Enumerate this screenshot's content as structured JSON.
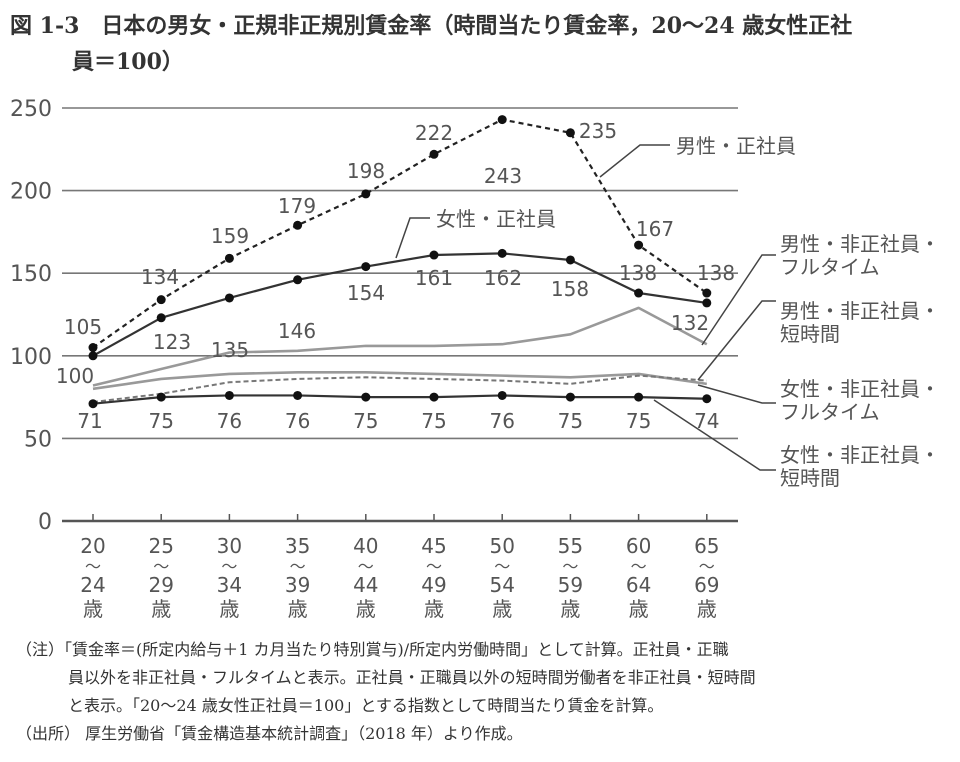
{
  "title": {
    "line1": "図 1-3　日本の男女・正規非正規別賃金率（時間当たり賃金率，20〜24 歳女性正社",
    "line2": "員＝100）"
  },
  "notes": {
    "note_label": "（注）",
    "note_line1": "「賃金率＝(所定内給与＋1 カ月当たり特別賞与)/所定内労働時間」として計算。正社員・正職",
    "note_line2": "員以外を非正社員・フルタイムと表示。正社員・正職員以外の短時間労働者を非正社員・短時間",
    "note_line3": "と表示。「20〜24 歳女性正社員＝100」とする指数として時間当たり賃金を計算。",
    "source_label": "（出所）",
    "source_text": "厚生労働省「賃金構造基本統計調査」（2018 年）より作成。"
  },
  "chart_data": {
    "type": "line",
    "title": "日本の男女・正規非正規別賃金率（時間当たり賃金率，20〜24 歳女性正社員＝100）",
    "xlabel": "",
    "ylabel": "",
    "ylim": [
      0,
      250
    ],
    "yticks": [
      0,
      50,
      100,
      150,
      200,
      250
    ],
    "grid": true,
    "legend_position": "right (leader-line labels)",
    "categories": [
      "20〜24歳",
      "25〜29歳",
      "30〜34歳",
      "35〜39歳",
      "40〜44歳",
      "45〜49歳",
      "50〜54歳",
      "55〜59歳",
      "60〜64歳",
      "65〜69歳"
    ],
    "x_tick_labels": [
      [
        "20",
        "〜",
        "24",
        "歳"
      ],
      [
        "25",
        "〜",
        "29",
        "歳"
      ],
      [
        "30",
        "〜",
        "34",
        "歳"
      ],
      [
        "35",
        "〜",
        "39",
        "歳"
      ],
      [
        "40",
        "〜",
        "44",
        "歳"
      ],
      [
        "45",
        "〜",
        "49",
        "歳"
      ],
      [
        "50",
        "〜",
        "54",
        "歳"
      ],
      [
        "55",
        "〜",
        "59",
        "歳"
      ],
      [
        "60",
        "〜",
        "64",
        "歳"
      ],
      [
        "65",
        "〜",
        "69",
        "歳"
      ]
    ],
    "series": [
      {
        "name": "男性・正社員",
        "values": [
          105,
          134,
          159,
          179,
          198,
          222,
          243,
          235,
          167,
          138
        ],
        "style": "dashed-black-markers",
        "labeled": true
      },
      {
        "name": "女性・正社員",
        "values": [
          100,
          123,
          135,
          146,
          154,
          161,
          162,
          158,
          138,
          132
        ],
        "style": "solid-black-markers",
        "labeled": true
      },
      {
        "name": "男性・非正社員・フルタイム",
        "values": [
          82,
          92,
          102,
          103,
          106,
          106,
          107,
          113,
          129,
          107
        ],
        "style": "solid-gray",
        "labeled": false,
        "estimated": true
      },
      {
        "name": "男性・非正社員・短時間",
        "values": [
          72,
          77,
          84,
          86,
          87,
          86,
          85,
          83,
          88,
          85
        ],
        "style": "dashed-gray",
        "labeled": false,
        "estimated": true
      },
      {
        "name": "女性・非正社員・フルタイム",
        "values": [
          80,
          86,
          89,
          90,
          90,
          89,
          88,
          87,
          89,
          83
        ],
        "style": "solid-gray",
        "labeled": false,
        "estimated": true
      },
      {
        "name": "女性・非正社員・短時間",
        "values": [
          71,
          75,
          76,
          76,
          75,
          75,
          76,
          75,
          75,
          74
        ],
        "style": "solid-black-markers",
        "labeled": true
      }
    ],
    "legend": [
      {
        "label_lines": [
          "男性・正社員"
        ]
      },
      {
        "label_lines": [
          "女性・正社員"
        ]
      },
      {
        "label_lines": [
          "男性・非正社員・",
          "フルタイム"
        ]
      },
      {
        "label_lines": [
          "男性・非正社員・",
          "短時間"
        ]
      },
      {
        "label_lines": [
          "女性・非正社員・",
          "フルタイム"
        ]
      },
      {
        "label_lines": [
          "女性・非正社員・",
          "短時間"
        ]
      }
    ]
  }
}
